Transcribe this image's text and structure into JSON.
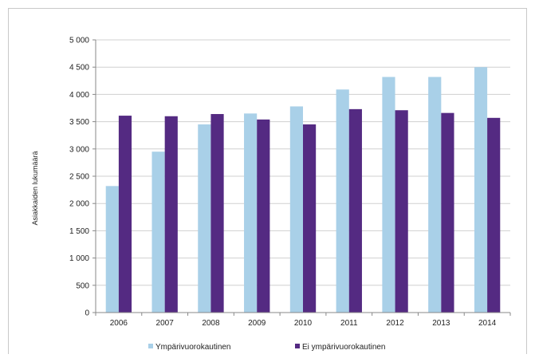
{
  "chart_data": {
    "type": "bar",
    "title": "",
    "xlabel": "",
    "ylabel": "Asiakkaiden lukumäärä",
    "categories": [
      "2006",
      "2007",
      "2008",
      "2009",
      "2010",
      "2011",
      "2012",
      "2013",
      "2014"
    ],
    "series": [
      {
        "name": "Ympärivuorokautinen",
        "color": "#a9d0e8",
        "values": [
          2320,
          2950,
          3450,
          3650,
          3780,
          4090,
          4320,
          4320,
          4500
        ]
      },
      {
        "name": "Ei ympärivuorokautinen",
        "color": "#542a82",
        "values": [
          3610,
          3600,
          3640,
          3540,
          3450,
          3730,
          3710,
          3660,
          3570
        ]
      }
    ],
    "ylim": [
      0,
      5000
    ],
    "yticks": [
      0,
      500,
      1000,
      1500,
      2000,
      2500,
      3000,
      3500,
      4000,
      4500,
      5000
    ],
    "ytick_labels": [
      "0",
      "500",
      "1 000",
      "1 500",
      "2 000",
      "2 500",
      "3 000",
      "3 500",
      "4 000",
      "4 500",
      "5 000"
    ],
    "grid": true,
    "legend_position": "bottom"
  }
}
